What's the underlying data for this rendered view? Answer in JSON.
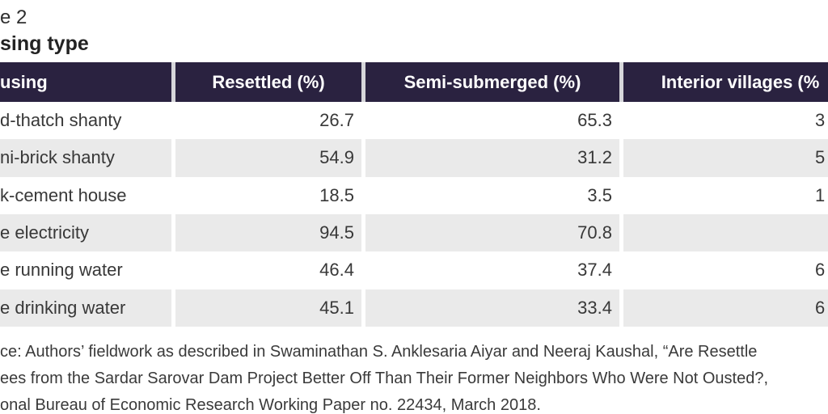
{
  "title": {
    "line1": "e 2",
    "line2": "sing type"
  },
  "table": {
    "columns": {
      "housing": "using",
      "resettled": "Resettled (%)",
      "semi_submerged": "Semi-submerged (%)",
      "interior_villages": "Interior villages (%"
    },
    "rows": [
      {
        "label": "d-thatch shanty",
        "resettled": "26.7",
        "semi_submerged": "65.3",
        "interior_villages": "3"
      },
      {
        "label": "ni-brick shanty",
        "resettled": "54.9",
        "semi_submerged": "31.2",
        "interior_villages": "5"
      },
      {
        "label": "k-cement house",
        "resettled": "18.5",
        "semi_submerged": "3.5",
        "interior_villages": "1"
      },
      {
        "label": "e electricity",
        "resettled": "94.5",
        "semi_submerged": "70.8",
        "interior_villages": ""
      },
      {
        "label": "e running water",
        "resettled": "46.4",
        "semi_submerged": "37.4",
        "interior_villages": "6"
      },
      {
        "label": "e drinking water",
        "resettled": "45.1",
        "semi_submerged": "33.4",
        "interior_villages": "6"
      }
    ]
  },
  "source_note": {
    "line1": "ce: Authors’ fieldwork as described in Swaminathan S. Anklesaria Aiyar and Neeraj Kaushal, “Are Resettle",
    "line2": "ees from the Sardar Sarovar Dam Project Better Off Than Their Former Neighbors Who Were Not Ousted?,",
    "line3": "onal Bureau of Economic Research Working Paper no. 22434, March 2018."
  },
  "colors": {
    "header_bg": "#2a2240",
    "row_alt_bg": "#eaeaea",
    "header_text": "#ffffff",
    "body_text": "#383838"
  }
}
